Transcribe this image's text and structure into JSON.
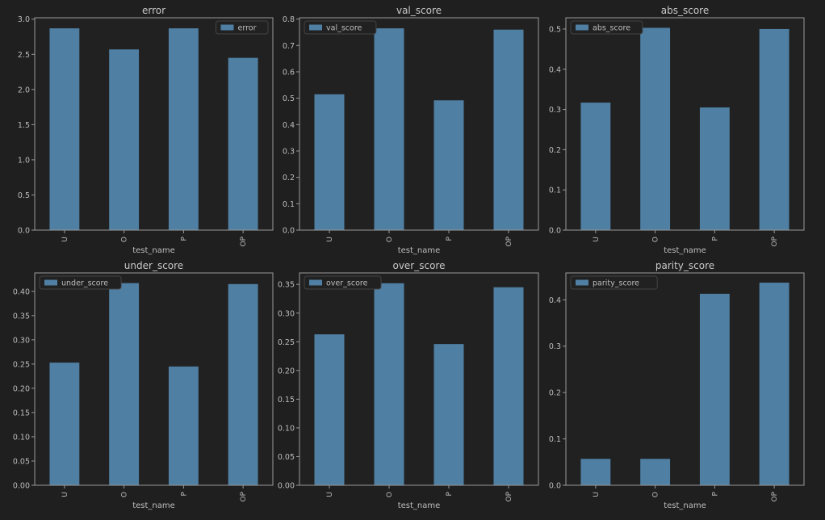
{
  "theme": {
    "background": "#1f1f1f",
    "plot_background": "#212121",
    "bar_color": "#4f7fa3",
    "text_color": "#bdbdbd",
    "title_color": "#c8c8c8",
    "axis_color": "#9a9a9a",
    "legend_border": "#444444"
  },
  "chart_data": [
    {
      "type": "bar",
      "title": "error",
      "xlabel": "test_name",
      "ylabel": "",
      "categories": [
        "U",
        "O",
        "P",
        "OP"
      ],
      "series": [
        {
          "name": "error",
          "values": [
            2.87,
            2.57,
            2.87,
            2.45
          ]
        }
      ],
      "ylim": [
        0,
        3.02
      ],
      "yticks": [
        "0.0",
        "0.5",
        "1.0",
        "1.5",
        "2.0",
        "2.5",
        "3.0"
      ],
      "legend_position": "top-right"
    },
    {
      "type": "bar",
      "title": "val_score",
      "xlabel": "test_name",
      "ylabel": "",
      "categories": [
        "U",
        "O",
        "P",
        "OP"
      ],
      "series": [
        {
          "name": "val_score",
          "values": [
            0.515,
            0.765,
            0.492,
            0.76
          ]
        }
      ],
      "ylim": [
        0,
        0.805
      ],
      "yticks": [
        "0.0",
        "0.1",
        "0.2",
        "0.3",
        "0.4",
        "0.5",
        "0.6",
        "0.7",
        "0.8"
      ],
      "legend_position": "top-left"
    },
    {
      "type": "bar",
      "title": "abs_score",
      "xlabel": "test_name",
      "ylabel": "",
      "categories": [
        "U",
        "O",
        "P",
        "OP"
      ],
      "series": [
        {
          "name": "abs_score",
          "values": [
            0.317,
            0.503,
            0.305,
            0.5
          ]
        }
      ],
      "ylim": [
        0,
        0.528
      ],
      "yticks": [
        "0.0",
        "0.1",
        "0.2",
        "0.3",
        "0.4",
        "0.5"
      ],
      "legend_position": "top-left"
    },
    {
      "type": "bar",
      "title": "under_score",
      "xlabel": "test_name",
      "ylabel": "",
      "categories": [
        "U",
        "O",
        "P",
        "OP"
      ],
      "series": [
        {
          "name": "under_score",
          "values": [
            0.253,
            0.417,
            0.245,
            0.415
          ]
        }
      ],
      "ylim": [
        0,
        0.438
      ],
      "yticks": [
        "0.00",
        "0.05",
        "0.10",
        "0.15",
        "0.20",
        "0.25",
        "0.30",
        "0.35",
        "0.40"
      ],
      "legend_position": "top-left"
    },
    {
      "type": "bar",
      "title": "over_score",
      "xlabel": "test_name",
      "ylabel": "",
      "categories": [
        "U",
        "O",
        "P",
        "OP"
      ],
      "series": [
        {
          "name": "over_score",
          "values": [
            0.263,
            0.352,
            0.246,
            0.345
          ]
        }
      ],
      "ylim": [
        0,
        0.37
      ],
      "yticks": [
        "0.00",
        "0.05",
        "0.10",
        "0.15",
        "0.20",
        "0.25",
        "0.30",
        "0.35"
      ],
      "legend_position": "top-left"
    },
    {
      "type": "bar",
      "title": "parity_score",
      "xlabel": "test_name",
      "ylabel": "",
      "categories": [
        "U",
        "O",
        "P",
        "OP"
      ],
      "series": [
        {
          "name": "parity_score",
          "values": [
            0.057,
            0.057,
            0.413,
            0.437
          ]
        }
      ],
      "ylim": [
        0,
        0.458
      ],
      "yticks": [
        "0.0",
        "0.1",
        "0.2",
        "0.3",
        "0.4"
      ],
      "legend_position": "top-left"
    }
  ]
}
